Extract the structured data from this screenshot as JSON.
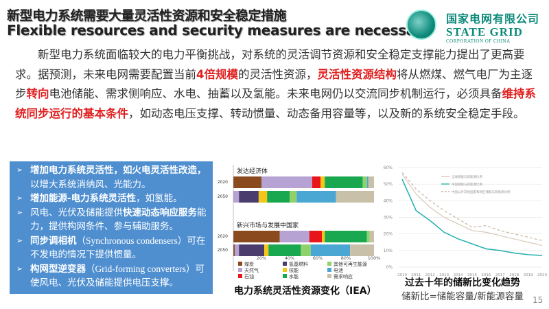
{
  "title_cn": "新型电力系统需要大量灵活性资源和安全稳定措施",
  "title_en": "Flexible resources and security measures are necessary",
  "brand": {
    "cn": "国家电网有限公司",
    "en": "STATE GRID",
    "sub": "CORPORATION OF CHINA",
    "color": "#0b8a7a"
  },
  "paragraph": [
    {
      "t": "新型电力系统面临较大的电力平衡挑战，对系统的灵活调节资源和安全稳定支撑能力提出了更高要求。据预测，未来电网需要配置当前",
      "h": false
    },
    {
      "t": "4倍规模",
      "h": true
    },
    {
      "t": "的灵活性资源，",
      "h": false
    },
    {
      "t": "灵活性资源结构",
      "h": true
    },
    {
      "t": "将从燃煤、燃气电厂为主逐步",
      "h": false
    },
    {
      "t": "转向",
      "h": true
    },
    {
      "t": "电池储能、需求侧响应、水电、抽蓄以及氢能。未来电网仍以交流同步机制运行，必须具备",
      "h": false
    },
    {
      "t": "维持系统同步运行的基本条件",
      "h": true
    },
    {
      "t": "，如动态电压支撑、转动惯量、动态备用容量等，以及新的系统安全稳定手段。",
      "h": false
    }
  ],
  "highlight_color": "#e02020",
  "bullets": [
    {
      "bold": "增加电力系统灵活性，如火电灵活性改造，",
      "rest": "以增大系统消纳风、光能力。"
    },
    {
      "pre": "",
      "bold": "增加能源-电力系统灵活性",
      "rest": "，如氢能。"
    },
    {
      "pre": "风电、光伏及储能提供",
      "bold": "快速动态响应服务",
      "rest": "能力，提供构网条件、参与辅助服务。"
    },
    {
      "pre": "",
      "bold": "同步调相机",
      "lat": "（Synchronous condensers）",
      "rest": "可在不发电的情况下提供惯量。"
    },
    {
      "pre": "",
      "bold": "构网型逆变器",
      "lat": "（Grid-forming converters）",
      "rest": "可使风电、光伏及储能提供电压支撑。"
    }
  ],
  "chart_data": [
    {
      "type": "bar",
      "stacked": true,
      "orientation": "horizontal",
      "title": "电力系统灵活性资源变化（IEA）",
      "xlim": [
        0,
        100
      ],
      "xticks": [
        "20%",
        "40%",
        "60%",
        "80%",
        "100%"
      ],
      "legend": [
        "煤炭",
        "氢基燃料",
        "其他可再生能源",
        "天然气",
        "核能",
        "电池",
        "石油",
        "水能",
        "需求响应"
      ],
      "legend_placement": "bottom",
      "segments": [
        "煤炭",
        "天然气",
        "氢基燃料",
        "石油",
        "核能",
        "水能",
        "其他可再生能源",
        "电池",
        "需求响应"
      ],
      "colors": [
        "#8a4a1e",
        "#b6a3d4",
        "#4a3c6c",
        "#e8161b",
        "#f5c518",
        "#19a84f",
        "#8fd16b",
        "#4aa6d2",
        "#c9c0aa"
      ],
      "groups": [
        {
          "name": "发达经济体",
          "rows": [
            {
              "label": "2020",
              "values": [
                20,
                36,
                0,
                6,
                3,
                27,
                3,
                1,
                4
              ]
            },
            {
              "label": "2050",
              "values": [
                0,
                4,
                14,
                0,
                6,
                16,
                5,
                28,
                27
              ]
            }
          ]
        },
        {
          "name": "新兴市场与发展中国家",
          "rows": [
            {
              "label": "2020",
              "values": [
                33,
                21,
                0,
                9,
                2,
                30,
                2,
                0,
                3
              ]
            },
            {
              "label": "2050",
              "values": [
                1,
                3,
                18,
                0,
                3,
                23,
                7,
                28,
                17
              ]
            }
          ]
        }
      ]
    },
    {
      "type": "line",
      "title": "过去十年的储新比变化趋势",
      "subtitle": "储新比=储能容量/新能源容量",
      "x": [
        2010,
        2011,
        2012,
        2013,
        2014,
        2015,
        2016,
        2017,
        2018,
        2019,
        2020
      ],
      "ylim": [
        0,
        60
      ],
      "yticks": [
        "0%",
        "10%",
        "20%",
        "30%",
        "40%",
        "50%",
        "60%"
      ],
      "grid": true,
      "legend_placement": "top-right",
      "series": [
        {
          "name": "全球储能与新能源比例",
          "color": "#d8c8b8",
          "style": "solid",
          "values": [
            56,
            44,
            36,
            30,
            26,
            22,
            21,
            19,
            17,
            15,
            13
          ]
        },
        {
          "name": "中国储能与新能源比例",
          "color": "#2bb3b0",
          "style": "solid",
          "values": [
            53,
            34,
            28,
            21,
            17,
            14,
            11,
            10,
            8.5,
            7.5,
            7
          ]
        },
        {
          "name": "中国以外其他国家和地区储能与新能源比例",
          "color": "#c9b6a4",
          "style": "dashed",
          "values": [
            57,
            47,
            40,
            34,
            29,
            24,
            25,
            22,
            20,
            18,
            16
          ]
        }
      ]
    }
  ],
  "page_number": "15"
}
